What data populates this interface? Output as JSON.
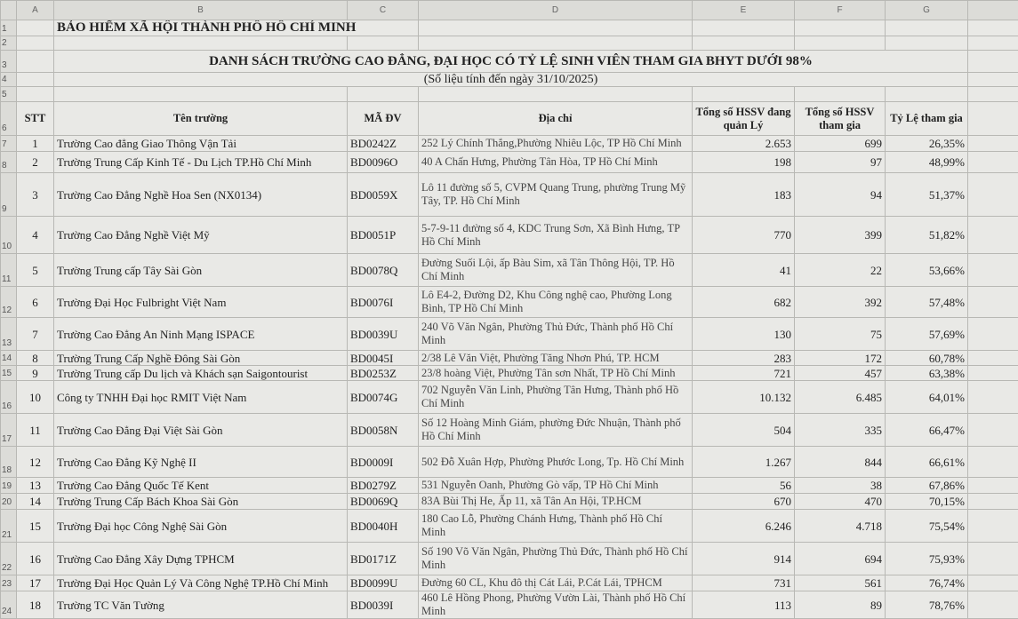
{
  "columns": [
    "A",
    "B",
    "C",
    "D",
    "E",
    "F",
    "G"
  ],
  "row_numbers": [
    1,
    2,
    3,
    4,
    5,
    6,
    7,
    8,
    9,
    10,
    11,
    12,
    13,
    14,
    15,
    16,
    17,
    18,
    19,
    20,
    21,
    22,
    23,
    24
  ],
  "header": {
    "org": "BẢO HIỂM XÃ HỘI THÀNH PHỐ HỒ CHÍ MINH",
    "title": "DANH SÁCH TRƯỜNG CAO ĐẲNG, ĐẠI HỌC CÓ TỶ LỆ SINH VIÊN THAM GIA BHYT DƯỚI 98%",
    "subtitle": "(Số liệu tính đến ngày 31/10/2025)"
  },
  "table": {
    "headers": [
      "STT",
      "Tên trường",
      "MÃ ĐV",
      "Địa chỉ",
      "Tổng số HSSV đang quản Lý",
      "Tổng số HSSV tham gia",
      "Tỷ Lệ tham gia"
    ],
    "rows": [
      [
        1,
        "Trường Cao đẳng Giao Thông Vận Tải",
        "BD0242Z",
        "252 Lý Chính Thắng,Phường Nhiêu Lộc, TP Hồ Chí Minh",
        "2.653",
        "699",
        "26,35%"
      ],
      [
        2,
        "Trường Trung Cấp Kinh Tế - Du Lịch TP.Hồ Chí Minh",
        "BD0096O",
        "40 A Chấn Hưng, Phường Tân Hòa, TP Hồ Chí Minh",
        "198",
        "97",
        "48,99%"
      ],
      [
        3,
        "Trường Cao Đẳng Nghề Hoa Sen (NX0134)",
        "BD0059X",
        "Lô 11 đường số 5, CVPM Quang Trung, phường Trung Mỹ Tây, TP. Hồ Chí Minh",
        "183",
        "94",
        "51,37%"
      ],
      [
        4,
        "Trường Cao Đẳng Nghề Việt Mỹ",
        "BD0051P",
        "5-7-9-11 đường số 4, KDC Trung Sơn, Xã Bình Hưng, TP Hồ Chí Minh",
        "770",
        "399",
        "51,82%"
      ],
      [
        5,
        "Trường Trung cấp Tây Sài Gòn",
        "BD0078Q",
        "Đường Suối Lội, ấp Bàu Sim, xã Tân Thông Hội, TP. Hồ Chí Minh",
        "41",
        "22",
        "53,66%"
      ],
      [
        6,
        "Trường Đại Học Fulbright Việt Nam",
        "BD0076I",
        "Lô E4-2, Đường D2, Khu Công nghệ cao, Phường Long Bình, TP Hồ Chí Minh",
        "682",
        "392",
        "57,48%"
      ],
      [
        7,
        "Trường Cao Đẳng An Ninh Mạng ISPACE",
        "BD0039U",
        "240 Võ Văn Ngân, Phường Thủ Đức, Thành phố Hồ Chí Minh",
        "130",
        "75",
        "57,69%"
      ],
      [
        8,
        "Trường Trung Cấp Nghề Đông Sài Gòn",
        "BD0045I",
        "2/38 Lê Văn Việt, Phường Tăng Nhơn Phú, TP. HCM",
        "283",
        "172",
        "60,78%"
      ],
      [
        9,
        "Trường Trung cấp Du lịch và Khách sạn Saigontourist",
        "BD0253Z",
        "23/8 hoàng Việt, Phường Tân sơn Nhất, TP Hồ Chí Minh",
        "721",
        "457",
        "63,38%"
      ],
      [
        10,
        "Công ty TNHH Đại học RMIT Việt Nam",
        "BD0074G",
        "702 Nguyễn Văn Linh, Phường Tân Hưng, Thành phố Hồ Chí Minh",
        "10.132",
        "6.485",
        "64,01%"
      ],
      [
        11,
        "Trường Cao Đẳng Đại Việt Sài Gòn",
        "BD0058N",
        "Số 12 Hoàng Minh Giám, phường Đức Nhuận, Thành phố Hồ Chí Minh",
        "504",
        "335",
        "66,47%"
      ],
      [
        12,
        "Trường Cao Đẳng Kỹ Nghệ II",
        "BD0009I",
        "502 Đỗ Xuân Hợp, Phường Phước Long, Tp. Hồ Chí Minh",
        "1.267",
        "844",
        "66,61%"
      ],
      [
        13,
        "Trường Cao Đẳng Quốc Tế Kent",
        "BD0279Z",
        "531 Nguyễn Oanh, Phường Gò vấp, TP Hồ Chí Minh",
        "56",
        "38",
        "67,86%"
      ],
      [
        14,
        "Trường Trung Cấp Bách Khoa Sài Gòn",
        "BD0069Q",
        "83A Bùi Thị He, Ấp 11, xã Tân An Hội, TP.HCM",
        "670",
        "470",
        "70,15%"
      ],
      [
        15,
        "Trường Đại học Công Nghệ Sài Gòn",
        "BD0040H",
        "180 Cao Lỗ, Phường Chánh Hưng, Thành phố Hồ Chí Minh",
        "6.246",
        "4.718",
        "75,54%"
      ],
      [
        16,
        "Trường Cao Đẳng Xây Dựng TPHCM",
        "BD0171Z",
        "Số 190 Võ Văn Ngân, Phường Thủ Đức, Thành phố Hồ Chí Minh",
        "914",
        "694",
        "75,93%"
      ],
      [
        17,
        "Trường Đại Học Quản Lý Và Công Nghệ TP.Hồ Chí Minh",
        "BD0099U",
        "Đường 60 CL, Khu đô thị Cát Lái, P.Cát Lái, TPHCM",
        "731",
        "561",
        "76,74%"
      ],
      [
        18,
        "Trường TC Văn Tường",
        "BD0039I",
        "460 Lê Hồng Phong, Phường Vườn Lài, Thành phố Hồ Chí Minh",
        "113",
        "89",
        "78,76%"
      ]
    ]
  }
}
